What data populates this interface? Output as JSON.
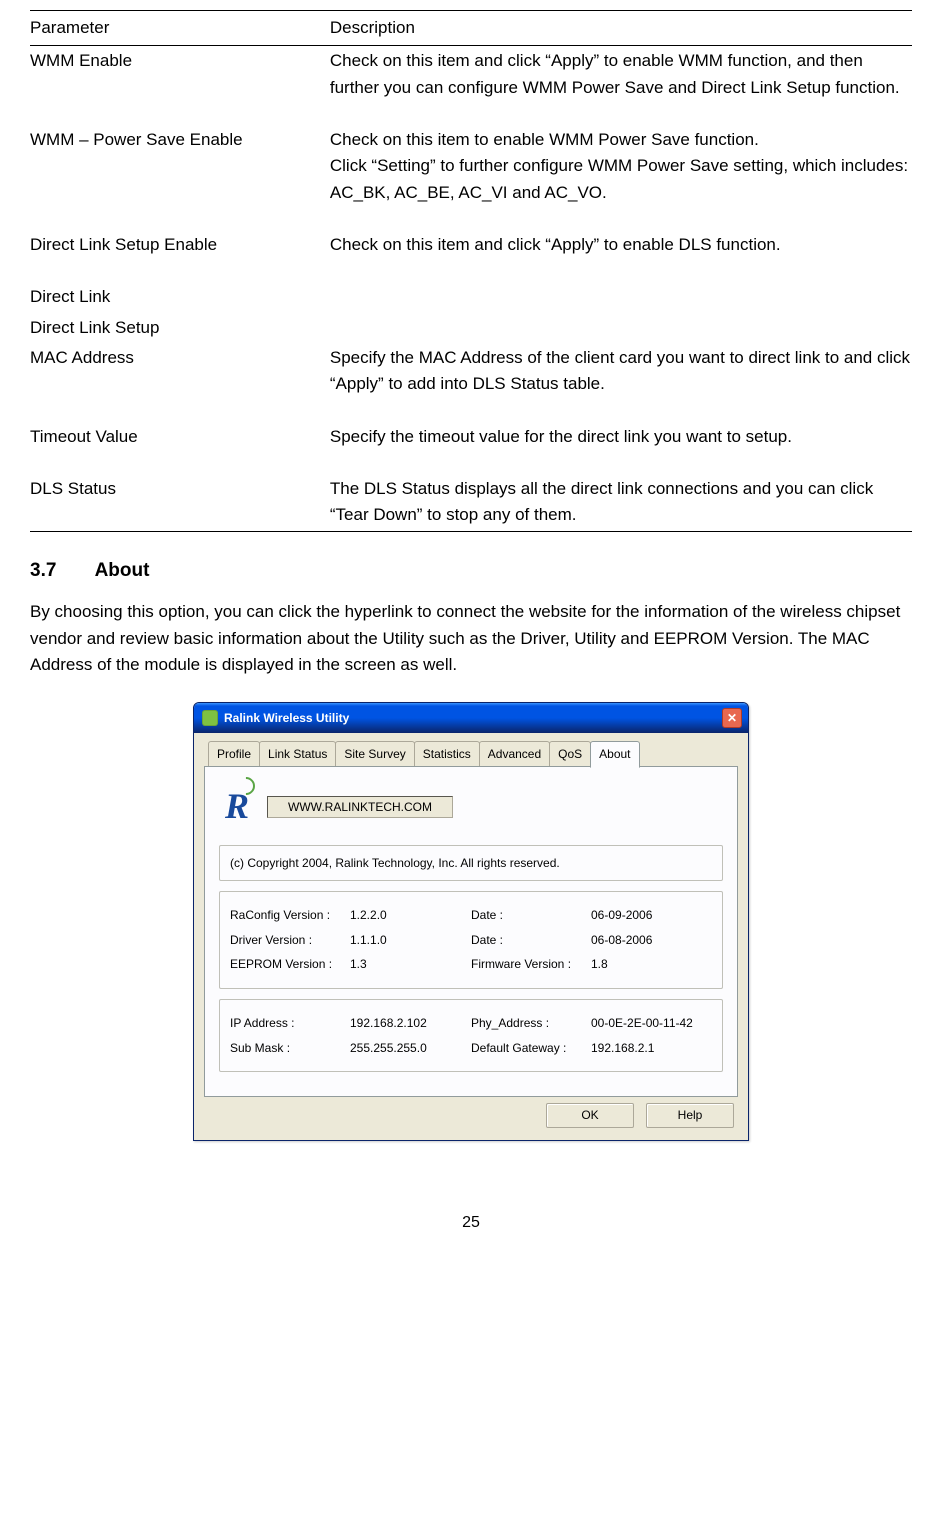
{
  "table": {
    "headers": [
      "Parameter",
      "Description"
    ],
    "rows": [
      {
        "param": "WMM Enable",
        "indent": 0,
        "desc": "Check on this item and click “Apply” to enable WMM function, and then further you can configure WMM Power Save and Direct Link Setup function."
      },
      {
        "param": "WMM – Power Save Enable",
        "indent": 1,
        "desc": "Check on this item to enable WMM Power Save function.\nClick “Setting” to further configure WMM Power Save setting, which includes: AC_BK, AC_BE, AC_VI and AC_VO."
      },
      {
        "param": "Direct Link Setup Enable",
        "indent": 1,
        "desc": "Check on this item and click “Apply” to enable DLS function."
      },
      {
        "param": "Direct Link",
        "indent": 2,
        "desc": ""
      },
      {
        "param": "Direct Link Setup",
        "indent": 3,
        "desc": ""
      },
      {
        "param": "MAC Address",
        "indent": 4,
        "desc": "Specify the MAC Address of the client card you want to direct link to and click “Apply” to add into DLS Status table."
      },
      {
        "param": "Timeout Value",
        "indent": 4,
        "desc": "Specify the timeout value for the direct link you want to setup."
      },
      {
        "param": "DLS Status",
        "indent": 3,
        "desc": "The DLS Status displays all the direct link connections and you can click “Tear Down” to stop any of them."
      }
    ]
  },
  "section": {
    "number": "3.7",
    "title": "About"
  },
  "intro": "By choosing this option, you can click the hyperlink to connect the website for the information of the wireless chipset vendor and review basic information about the Utility such as the Driver, Utility and EEPROM Version. The MAC Address of the module is displayed in the screen as well.",
  "dialog": {
    "title": "Ralink Wireless Utility",
    "tabs": [
      "Profile",
      "Link Status",
      "Site Survey",
      "Statistics",
      "Advanced",
      "QoS",
      "About"
    ],
    "active_tab_index": 6,
    "link_button": "WWW.RALINKTECH.COM",
    "copyright": "(c) Copyright 2004, Ralink Technology, Inc. All rights reserved.",
    "versions": {
      "raconfig_label": "RaConfig Version :",
      "raconfig_value": "1.2.2.0",
      "raconfig_date_label": "Date :",
      "raconfig_date_value": "06-09-2006",
      "driver_label": "Driver Version :",
      "driver_value": "1.1.1.0",
      "driver_date_label": "Date :",
      "driver_date_value": "06-08-2006",
      "eeprom_label": "EEPROM Version :",
      "eeprom_value": "1.3",
      "firmware_label": "Firmware Version :",
      "firmware_value": "1.8"
    },
    "net": {
      "ip_label": "IP Address :",
      "ip_value": "192.168.2.102",
      "phy_label": "Phy_Address :",
      "phy_value": "00-0E-2E-00-11-42",
      "mask_label": "Sub Mask :",
      "mask_value": "255.255.255.0",
      "gw_label": "Default Gateway :",
      "gw_value": "192.168.2.1"
    },
    "buttons": {
      "ok": "OK",
      "help": "Help"
    }
  },
  "page_number": "25"
}
